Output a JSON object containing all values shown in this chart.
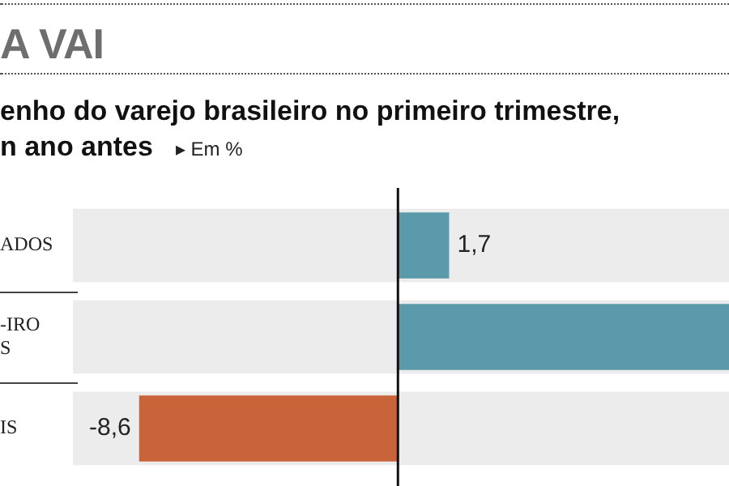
{
  "chart_data": {
    "type": "bar",
    "orientation": "horizontal",
    "title": "A VAI",
    "subtitle": "enho do varejo brasileiro no primeiro trimestre,\nn ano antes",
    "annotations": [
      "▸ Em %"
    ],
    "categories": [
      "ADOS",
      "-IRO\nS",
      "IS"
    ],
    "values": [
      1.7,
      11,
      -8.6
    ],
    "colors": [
      "#5a9aab",
      "#5a9aab",
      "#c9643a"
    ],
    "value_labels": [
      "1,7",
      null,
      "-8,6"
    ],
    "xlim": [
      -10.8,
      11
    ],
    "tick_labels": "y",
    "legend": false
  }
}
